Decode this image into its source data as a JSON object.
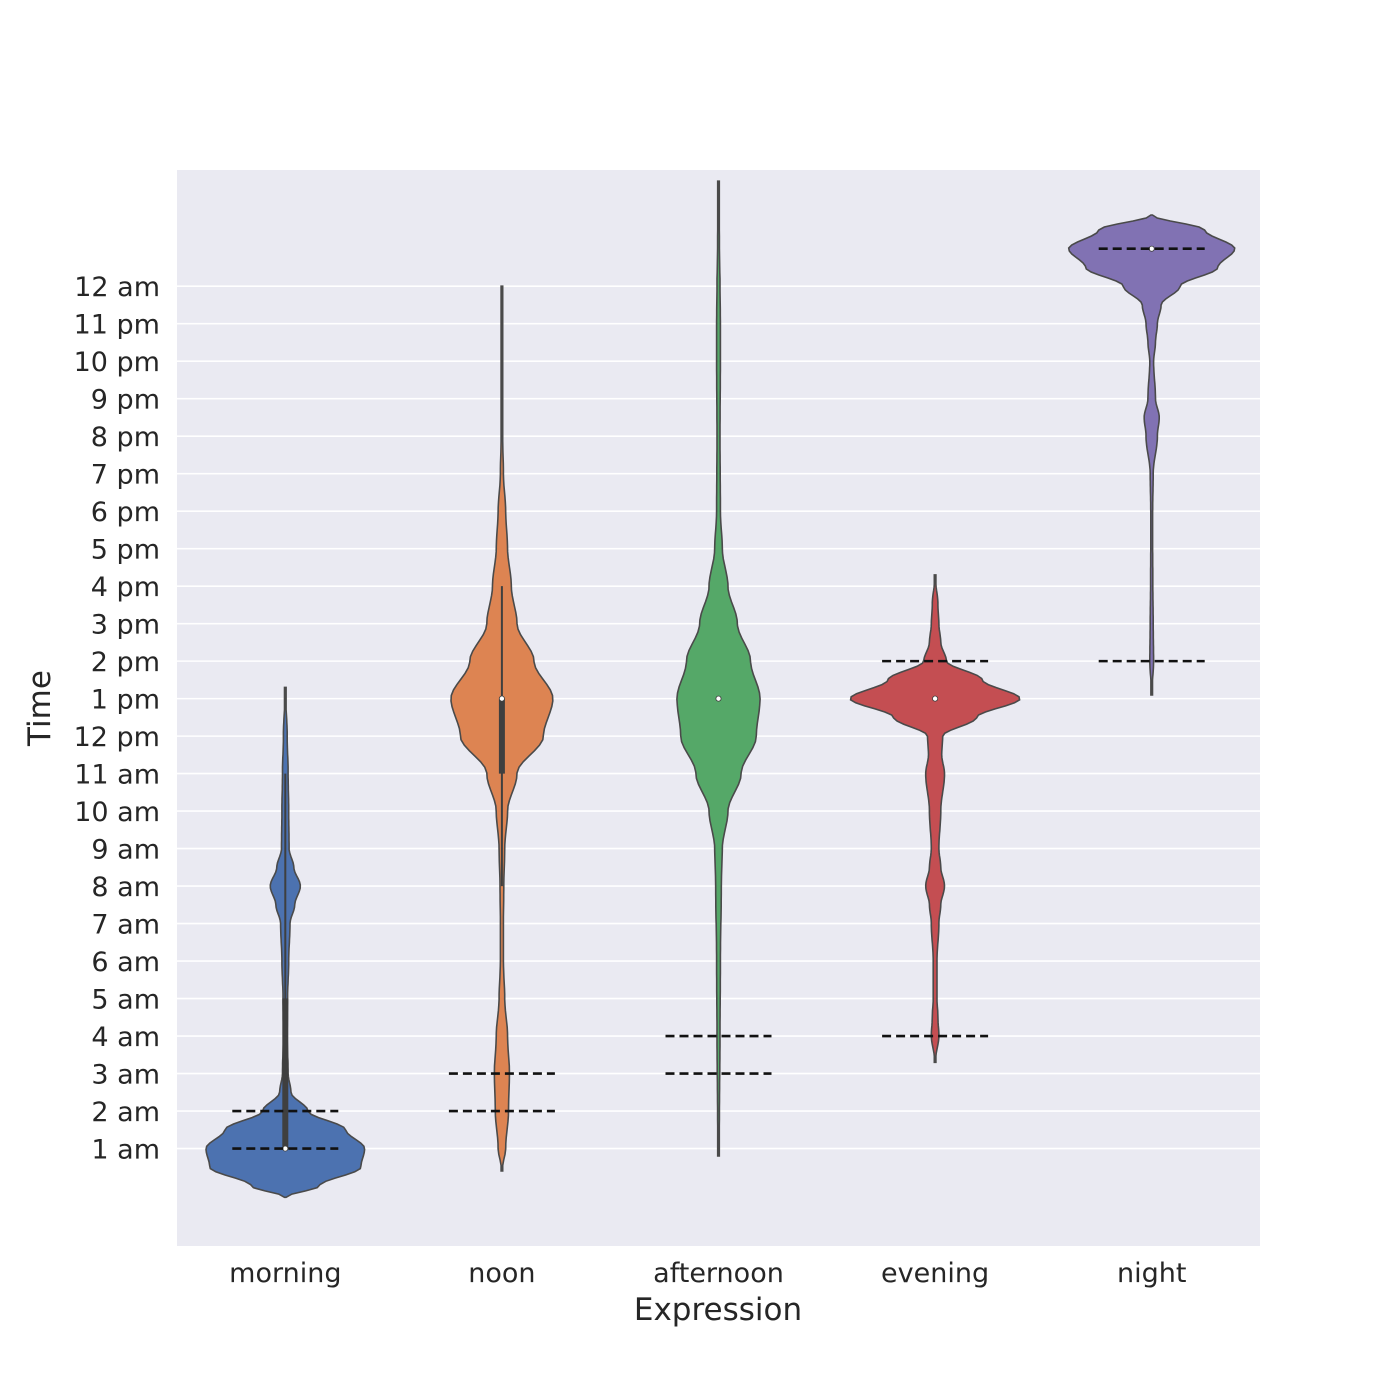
{
  "chart_data": {
    "type": "violin",
    "title": "",
    "xlabel": "Expression",
    "ylabel": "Time",
    "categories": [
      "morning",
      "noon",
      "afternoon",
      "evening",
      "night"
    ],
    "y_ticks": [
      {
        "value": 1,
        "label": "1 am"
      },
      {
        "value": 2,
        "label": "2 am"
      },
      {
        "value": 3,
        "label": "3 am"
      },
      {
        "value": 4,
        "label": "4 am"
      },
      {
        "value": 5,
        "label": "5 am"
      },
      {
        "value": 6,
        "label": "6 am"
      },
      {
        "value": 7,
        "label": "7 am"
      },
      {
        "value": 8,
        "label": "8 am"
      },
      {
        "value": 9,
        "label": "9 am"
      },
      {
        "value": 10,
        "label": "10 am"
      },
      {
        "value": 11,
        "label": "11 am"
      },
      {
        "value": 12,
        "label": "12 pm"
      },
      {
        "value": 13,
        "label": "1 pm"
      },
      {
        "value": 14,
        "label": "2 pm"
      },
      {
        "value": 15,
        "label": "3 pm"
      },
      {
        "value": 16,
        "label": "4 pm"
      },
      {
        "value": 17,
        "label": "5 pm"
      },
      {
        "value": 18,
        "label": "6 pm"
      },
      {
        "value": 19,
        "label": "7 pm"
      },
      {
        "value": 20,
        "label": "8 pm"
      },
      {
        "value": 21,
        "label": "9 pm"
      },
      {
        "value": 22,
        "label": "10 pm"
      },
      {
        "value": 23,
        "label": "11 pm"
      },
      {
        "value": 24,
        "label": "12 am"
      }
    ],
    "ylim": [
      -1.6,
      27.1
    ],
    "grid": true,
    "legend": "none",
    "colors": [
      "#4c72b0",
      "#dd8452",
      "#55a868",
      "#c44e52",
      "#8172b3"
    ],
    "violins": [
      {
        "category": "morning",
        "median": 1,
        "iqr": [
          1,
          5
        ],
        "whisker": [
          1,
          11
        ],
        "reference_lines": [
          1,
          2
        ],
        "density": [
          [
            -0.3,
            0
          ],
          [
            0,
            0.18
          ],
          [
            0.5,
            0.4
          ],
          [
            1,
            0.42
          ],
          [
            1.5,
            0.32
          ],
          [
            2,
            0.12
          ],
          [
            2.5,
            0.03
          ],
          [
            3,
            0.015
          ],
          [
            4,
            0.01
          ],
          [
            5,
            0.012
          ],
          [
            6,
            0.018
          ],
          [
            7,
            0.025
          ],
          [
            7.5,
            0.05
          ],
          [
            8,
            0.08
          ],
          [
            8.5,
            0.045
          ],
          [
            9,
            0.02
          ],
          [
            10,
            0.018
          ],
          [
            11,
            0.015
          ],
          [
            12,
            0.01
          ],
          [
            13.3,
            0
          ]
        ]
      },
      {
        "category": "noon",
        "median": 13,
        "iqr": [
          11,
          13
        ],
        "whisker": [
          8,
          16
        ],
        "reference_lines": [
          2,
          3
        ],
        "density": [
          [
            0.4,
            0
          ],
          [
            1,
            0.02
          ],
          [
            2,
            0.035
          ],
          [
            3,
            0.04
          ],
          [
            4,
            0.03
          ],
          [
            5,
            0.015
          ],
          [
            6,
            0.008
          ],
          [
            7,
            0.008
          ],
          [
            8,
            0.01
          ],
          [
            9,
            0.015
          ],
          [
            10,
            0.03
          ],
          [
            11,
            0.08
          ],
          [
            12,
            0.22
          ],
          [
            13,
            0.27
          ],
          [
            14,
            0.17
          ],
          [
            15,
            0.08
          ],
          [
            16,
            0.05
          ],
          [
            17,
            0.03
          ],
          [
            18,
            0.02
          ],
          [
            19,
            0.008
          ],
          [
            20,
            0.004
          ],
          [
            22,
            0.003
          ],
          [
            24,
            0
          ]
        ]
      },
      {
        "category": "afternoon",
        "median": 13,
        "iqr": [
          13,
          13
        ],
        "whisker": [
          13,
          13
        ],
        "reference_lines": [
          3,
          4
        ],
        "density": [
          [
            0.8,
            0
          ],
          [
            2,
            0.005
          ],
          [
            4,
            0.008
          ],
          [
            6,
            0.01
          ],
          [
            8,
            0.015
          ],
          [
            9,
            0.02
          ],
          [
            10,
            0.05
          ],
          [
            11,
            0.12
          ],
          [
            12,
            0.2
          ],
          [
            13,
            0.22
          ],
          [
            14,
            0.17
          ],
          [
            15,
            0.1
          ],
          [
            16,
            0.05
          ],
          [
            17,
            0.02
          ],
          [
            18,
            0.01
          ],
          [
            20,
            0.008
          ],
          [
            22,
            0.01
          ],
          [
            23,
            0.01
          ],
          [
            24,
            0.008
          ],
          [
            25,
            0.005
          ],
          [
            26.8,
            0
          ]
        ]
      },
      {
        "category": "evening",
        "median": 13,
        "iqr": [
          13,
          13
        ],
        "whisker": [
          13,
          13
        ],
        "reference_lines": [
          4,
          14
        ],
        "density": [
          [
            3.3,
            0
          ],
          [
            4,
            0.02
          ],
          [
            4.5,
            0.015
          ],
          [
            5,
            0.01
          ],
          [
            6,
            0.01
          ],
          [
            7,
            0.02
          ],
          [
            7.5,
            0.03
          ],
          [
            8,
            0.05
          ],
          [
            8.5,
            0.03
          ],
          [
            9,
            0.02
          ],
          [
            10,
            0.03
          ],
          [
            11,
            0.05
          ],
          [
            11.5,
            0.035
          ],
          [
            12,
            0.04
          ],
          [
            12.5,
            0.22
          ],
          [
            13,
            0.45
          ],
          [
            13.5,
            0.25
          ],
          [
            14,
            0.06
          ],
          [
            14.5,
            0.03
          ],
          [
            15,
            0.02
          ],
          [
            15.5,
            0.015
          ],
          [
            16.3,
            0
          ]
        ]
      },
      {
        "category": "night",
        "median": 25,
        "iqr": [
          25,
          25
        ],
        "whisker": [
          25,
          25
        ],
        "reference_lines": [
          14,
          25
        ],
        "density": [
          [
            13.1,
            0
          ],
          [
            14,
            0.01
          ],
          [
            15,
            0.008
          ],
          [
            16,
            0.006
          ],
          [
            17,
            0.005
          ],
          [
            18,
            0.005
          ],
          [
            19,
            0.008
          ],
          [
            20,
            0.03
          ],
          [
            20.5,
            0.04
          ],
          [
            21,
            0.02
          ],
          [
            22,
            0.01
          ],
          [
            22.5,
            0.02
          ],
          [
            23,
            0.03
          ],
          [
            23.5,
            0.05
          ],
          [
            24,
            0.15
          ],
          [
            24.5,
            0.35
          ],
          [
            25,
            0.44
          ],
          [
            25.5,
            0.28
          ],
          [
            25.9,
            0
          ]
        ]
      }
    ]
  }
}
